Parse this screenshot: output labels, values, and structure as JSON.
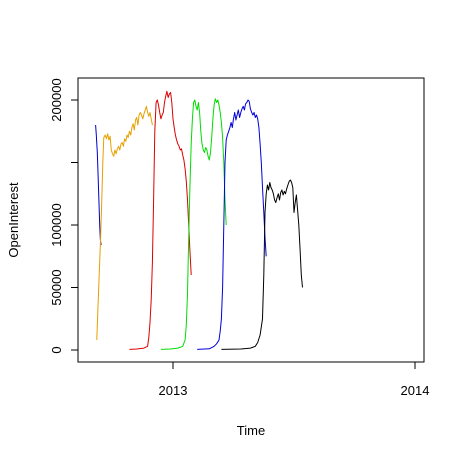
{
  "chart_data": {
    "type": "line",
    "title": "",
    "xlabel": "Time",
    "ylabel": "OpenInterest",
    "xlim": [
      2012.6,
      2014.0
    ],
    "ylim": [
      0,
      200000
    ],
    "x_ticks": [
      {
        "value": 2013,
        "label": "2013"
      },
      {
        "value": 2014,
        "label": "2014"
      }
    ],
    "y_ticks": [
      {
        "value": 0,
        "label": "0"
      },
      {
        "value": 50000,
        "label": "50000"
      },
      {
        "value": 100000,
        "label": "100000"
      },
      {
        "value": 200000,
        "label": "200000"
      }
    ],
    "grid": false,
    "legend": "none",
    "series": [
      {
        "color": "#0000cc",
        "points": [
          [
            2012.68,
            180000
          ],
          [
            2012.683,
            172000
          ],
          [
            2012.687,
            158000
          ],
          [
            2012.69,
            142000
          ],
          [
            2012.693,
            125000
          ],
          [
            2012.697,
            100000
          ],
          [
            2012.7,
            88000
          ],
          [
            2012.703,
            84000
          ]
        ]
      },
      {
        "color": "#e6a000",
        "points": [
          [
            2012.685,
            8000
          ],
          [
            2012.69,
            35000
          ],
          [
            2012.695,
            60000
          ],
          [
            2012.7,
            85000
          ],
          [
            2012.705,
            115000
          ],
          [
            2012.71,
            150000
          ],
          [
            2012.714,
            170000
          ],
          [
            2012.72,
            172000
          ],
          [
            2012.725,
            169000
          ],
          [
            2012.73,
            173000
          ],
          [
            2012.735,
            168000
          ],
          [
            2012.74,
            171000
          ],
          [
            2012.745,
            160000
          ],
          [
            2012.75,
            157000
          ],
          [
            2012.755,
            155000
          ],
          [
            2012.76,
            160000
          ],
          [
            2012.765,
            157000
          ],
          [
            2012.77,
            161000
          ],
          [
            2012.775,
            163000
          ],
          [
            2012.78,
            160000
          ],
          [
            2012.785,
            165000
          ],
          [
            2012.79,
            166000
          ],
          [
            2012.795,
            163000
          ],
          [
            2012.8,
            169000
          ],
          [
            2012.805,
            167000
          ],
          [
            2012.81,
            172000
          ],
          [
            2012.815,
            170000
          ],
          [
            2012.82,
            175000
          ],
          [
            2012.825,
            172000
          ],
          [
            2012.83,
            178000
          ],
          [
            2012.835,
            181000
          ],
          [
            2012.84,
            176000
          ],
          [
            2012.845,
            184000
          ],
          [
            2012.85,
            186000
          ],
          [
            2012.855,
            180000
          ],
          [
            2012.86,
            188000
          ],
          [
            2012.865,
            190000
          ],
          [
            2012.87,
            188000
          ],
          [
            2012.875,
            185000
          ],
          [
            2012.88,
            189000
          ],
          [
            2012.885,
            192000
          ],
          [
            2012.89,
            195000
          ],
          [
            2012.895,
            190000
          ],
          [
            2012.9,
            187000
          ],
          [
            2012.905,
            190000
          ],
          [
            2012.91,
            185000
          ],
          [
            2012.915,
            180000
          ]
        ]
      },
      {
        "color": "#dd0000",
        "points": [
          [
            2012.82,
            500
          ],
          [
            2012.85,
            800
          ],
          [
            2012.88,
            1500
          ],
          [
            2012.895,
            3000
          ],
          [
            2012.9,
            10000
          ],
          [
            2012.905,
            22000
          ],
          [
            2012.91,
            40000
          ],
          [
            2012.915,
            70000
          ],
          [
            2012.92,
            120000
          ],
          [
            2012.925,
            175000
          ],
          [
            2012.93,
            198000
          ],
          [
            2012.935,
            200000
          ],
          [
            2012.94,
            196000
          ],
          [
            2012.945,
            190000
          ],
          [
            2012.95,
            185000
          ],
          [
            2012.955,
            188000
          ],
          [
            2012.96,
            190000
          ],
          [
            2012.965,
            198000
          ],
          [
            2012.97,
            203000
          ],
          [
            2012.975,
            207000
          ],
          [
            2012.98,
            202000
          ],
          [
            2012.985,
            205000
          ],
          [
            2012.99,
            206000
          ],
          [
            2012.995,
            198000
          ],
          [
            2013.0,
            185000
          ],
          [
            2013.005,
            178000
          ],
          [
            2013.01,
            172000
          ],
          [
            2013.015,
            168000
          ],
          [
            2013.02,
            165000
          ],
          [
            2013.025,
            163000
          ],
          [
            2013.03,
            160000
          ],
          [
            2013.035,
            161000
          ],
          [
            2013.04,
            156000
          ],
          [
            2013.045,
            152000
          ],
          [
            2013.05,
            145000
          ],
          [
            2013.055,
            135000
          ],
          [
            2013.06,
            120000
          ],
          [
            2013.065,
            100000
          ],
          [
            2013.07,
            80000
          ],
          [
            2013.075,
            60000
          ]
        ]
      },
      {
        "color": "#00dd00",
        "points": [
          [
            2012.95,
            500
          ],
          [
            2012.99,
            800
          ],
          [
            2013.02,
            1500
          ],
          [
            2013.04,
            3000
          ],
          [
            2013.05,
            8000
          ],
          [
            2013.055,
            20000
          ],
          [
            2013.06,
            45000
          ],
          [
            2013.065,
            90000
          ],
          [
            2013.07,
            130000
          ],
          [
            2013.075,
            165000
          ],
          [
            2013.08,
            185000
          ],
          [
            2013.085,
            198000
          ],
          [
            2013.09,
            200000
          ],
          [
            2013.095,
            195000
          ],
          [
            2013.1,
            192000
          ],
          [
            2013.105,
            198000
          ],
          [
            2013.11,
            190000
          ],
          [
            2013.115,
            175000
          ],
          [
            2013.12,
            165000
          ],
          [
            2013.125,
            160000
          ],
          [
            2013.13,
            158000
          ],
          [
            2013.135,
            162000
          ],
          [
            2013.14,
            160000
          ],
          [
            2013.145,
            155000
          ],
          [
            2013.15,
            152000
          ],
          [
            2013.155,
            158000
          ],
          [
            2013.16,
            170000
          ],
          [
            2013.165,
            185000
          ],
          [
            2013.17,
            196000
          ],
          [
            2013.175,
            201000
          ],
          [
            2013.18,
            198000
          ],
          [
            2013.185,
            200000
          ],
          [
            2013.19,
            196000
          ],
          [
            2013.195,
            190000
          ],
          [
            2013.2,
            182000
          ],
          [
            2013.205,
            170000
          ],
          [
            2013.21,
            150000
          ],
          [
            2013.215,
            120000
          ],
          [
            2013.22,
            100000
          ]
        ]
      },
      {
        "color": "#0000dd",
        "points": [
          [
            2013.1,
            500
          ],
          [
            2013.15,
            1000
          ],
          [
            2013.17,
            3000
          ],
          [
            2013.18,
            5000
          ],
          [
            2013.19,
            8000
          ],
          [
            2013.195,
            15000
          ],
          [
            2013.2,
            25000
          ],
          [
            2013.205,
            50000
          ],
          [
            2013.21,
            100000
          ],
          [
            2013.215,
            150000
          ],
          [
            2013.22,
            168000
          ],
          [
            2013.225,
            172000
          ],
          [
            2013.23,
            175000
          ],
          [
            2013.235,
            178000
          ],
          [
            2013.24,
            182000
          ],
          [
            2013.245,
            178000
          ],
          [
            2013.25,
            185000
          ],
          [
            2013.255,
            190000
          ],
          [
            2013.26,
            184000
          ],
          [
            2013.265,
            188000
          ],
          [
            2013.27,
            192000
          ],
          [
            2013.275,
            186000
          ],
          [
            2013.28,
            190000
          ],
          [
            2013.285,
            193000
          ],
          [
            2013.29,
            195000
          ],
          [
            2013.295,
            192000
          ],
          [
            2013.3,
            197000
          ],
          [
            2013.305,
            198000
          ],
          [
            2013.31,
            200000
          ],
          [
            2013.315,
            199000
          ],
          [
            2013.32,
            193000
          ],
          [
            2013.325,
            190000
          ],
          [
            2013.33,
            188000
          ],
          [
            2013.335,
            190000
          ],
          [
            2013.34,
            186000
          ],
          [
            2013.345,
            188000
          ],
          [
            2013.35,
            185000
          ],
          [
            2013.355,
            178000
          ],
          [
            2013.36,
            165000
          ],
          [
            2013.365,
            150000
          ],
          [
            2013.37,
            130000
          ],
          [
            2013.375,
            110000
          ],
          [
            2013.38,
            90000
          ],
          [
            2013.385,
            75000
          ]
        ]
      },
      {
        "color": "#000000",
        "points": [
          [
            2013.2,
            500
          ],
          [
            2013.28,
            800
          ],
          [
            2013.32,
            1500
          ],
          [
            2013.34,
            3000
          ],
          [
            2013.35,
            6000
          ],
          [
            2013.36,
            12000
          ],
          [
            2013.37,
            25000
          ],
          [
            2013.375,
            60000
          ],
          [
            2013.38,
            110000
          ],
          [
            2013.385,
            125000
          ],
          [
            2013.39,
            132000
          ],
          [
            2013.395,
            128000
          ],
          [
            2013.4,
            134000
          ],
          [
            2013.405,
            130000
          ],
          [
            2013.41,
            128000
          ],
          [
            2013.415,
            125000
          ],
          [
            2013.42,
            120000
          ],
          [
            2013.425,
            118000
          ],
          [
            2013.43,
            122000
          ],
          [
            2013.435,
            125000
          ],
          [
            2013.44,
            120000
          ],
          [
            2013.445,
            126000
          ],
          [
            2013.45,
            128000
          ],
          [
            2013.455,
            124000
          ],
          [
            2013.46,
            127000
          ],
          [
            2013.465,
            125000
          ],
          [
            2013.47,
            129000
          ],
          [
            2013.475,
            132000
          ],
          [
            2013.48,
            135000
          ],
          [
            2013.485,
            136000
          ],
          [
            2013.49,
            134000
          ],
          [
            2013.495,
            130000
          ],
          [
            2013.5,
            110000
          ],
          [
            2013.505,
            118000
          ],
          [
            2013.51,
            124000
          ],
          [
            2013.515,
            112000
          ],
          [
            2013.52,
            100000
          ],
          [
            2013.525,
            80000
          ],
          [
            2013.53,
            60000
          ],
          [
            2013.535,
            50000
          ]
        ]
      }
    ]
  }
}
